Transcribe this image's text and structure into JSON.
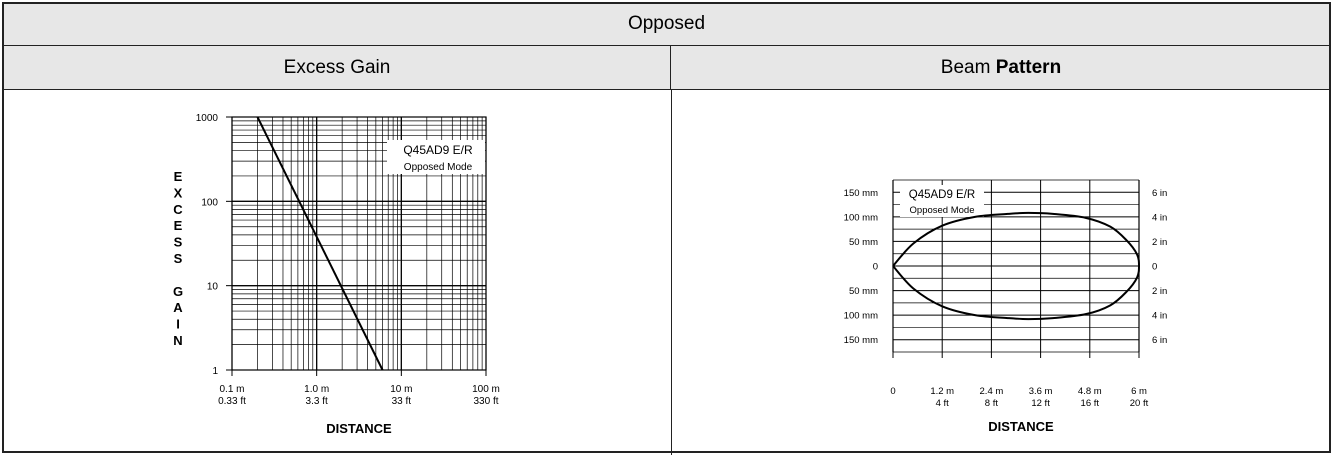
{
  "table": {
    "title": "Opposed",
    "left_header": "Excess Gain",
    "right_header_plain": "Beam ",
    "right_header_bold": "Pattern"
  },
  "chart_data": [
    {
      "type": "line",
      "name": "excess-gain",
      "x_scale": "log",
      "y_scale": "log",
      "xlim": [
        0.1,
        100
      ],
      "ylim": [
        1,
        1000
      ],
      "x_tick_labels_m": [
        "0.1 m",
        "1.0 m",
        "10 m",
        "100 m"
      ],
      "x_tick_labels_ft": [
        "0.33 ft",
        "3.3 ft",
        "33 ft",
        "330 ft"
      ],
      "y_tick_labels": [
        "1000",
        "100",
        "10",
        "1"
      ],
      "xlabel": "DISTANCE",
      "ylabel": "EXCESS GAIN",
      "ylabel_lines": [
        "E",
        "X",
        "C",
        "E",
        "S",
        "S",
        "",
        "G",
        "A",
        "I",
        "N"
      ],
      "legend": [
        "Q45AD9 E/R",
        "Opposed Mode"
      ],
      "legend_position": "top-right",
      "grid": true,
      "series": [
        {
          "x": [
            0.2,
            6.0
          ],
          "y": [
            1000,
            1
          ]
        }
      ]
    },
    {
      "type": "line",
      "name": "beam-pattern",
      "xlim": [
        0,
        6
      ],
      "ylim": [
        -175,
        175
      ],
      "x_tick_labels_m": [
        "0",
        "1.2 m",
        "2.4 m",
        "3.6 m",
        "4.8 m",
        "6 m"
      ],
      "x_tick_labels_ft": [
        "",
        "4 ft",
        "8 ft",
        "12 ft",
        "16 ft",
        "20 ft"
      ],
      "y_tick_labels_left": [
        "150 mm",
        "100 mm",
        "50 mm",
        "0",
        "50 mm",
        "100 mm",
        "150 mm"
      ],
      "y_tick_labels_right": [
        "6 in",
        "4 in",
        "2 in",
        "0",
        "2 in",
        "4 in",
        "6 in"
      ],
      "xlabel": "DISTANCE",
      "legend": [
        "Q45AD9 E/R",
        "Opposed Mode"
      ],
      "legend_position": "top-left",
      "grid": true,
      "series": [
        {
          "x": [
            0,
            0.5,
            1.2,
            2.0,
            2.8,
            3.3,
            3.9,
            4.7,
            5.3,
            5.7,
            5.95,
            6.0,
            5.95,
            5.7,
            5.3,
            4.7,
            3.9,
            3.3,
            2.8,
            2.0,
            1.2,
            0.5,
            0
          ],
          "y": [
            0,
            46,
            82,
            100,
            106,
            108,
            106,
            98,
            80,
            52,
            24,
            0,
            -24,
            -52,
            -80,
            -98,
            -106,
            -108,
            -106,
            -100,
            -82,
            -46,
            0
          ]
        }
      ]
    }
  ]
}
